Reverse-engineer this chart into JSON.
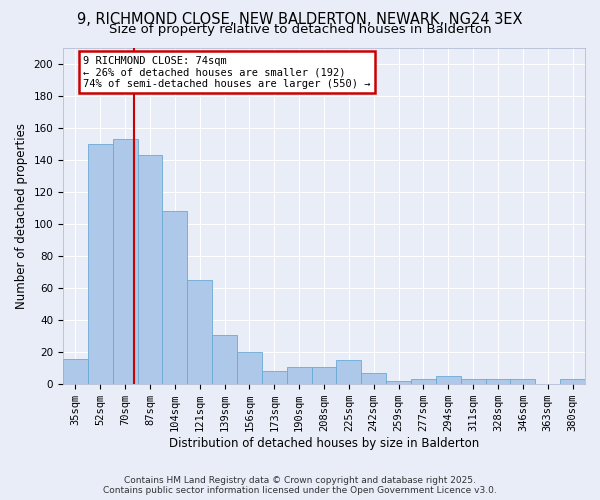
{
  "title": "9, RICHMOND CLOSE, NEW BALDERTON, NEWARK, NG24 3EX",
  "subtitle": "Size of property relative to detached houses in Balderton",
  "xlabel": "Distribution of detached houses by size in Balderton",
  "ylabel": "Number of detached properties",
  "bin_labels": [
    "35sqm",
    "52sqm",
    "70sqm",
    "87sqm",
    "104sqm",
    "121sqm",
    "139sqm",
    "156sqm",
    "173sqm",
    "190sqm",
    "208sqm",
    "225sqm",
    "242sqm",
    "259sqm",
    "277sqm",
    "294sqm",
    "311sqm",
    "328sqm",
    "346sqm",
    "363sqm",
    "380sqm"
  ],
  "bar_heights": [
    16,
    150,
    153,
    143,
    108,
    65,
    31,
    20,
    8,
    11,
    11,
    15,
    7,
    2,
    3,
    5,
    3,
    3,
    3,
    0,
    3
  ],
  "bar_color": "#adc8e8",
  "bar_edge_color": "#6aaad4",
  "background_color": "#e8edf8",
  "grid_color": "#ffffff",
  "property_label": "9 RICHMOND CLOSE: 74sqm",
  "annotation_line1": "← 26% of detached houses are smaller (192)",
  "annotation_line2": "74% of semi-detached houses are larger (550) →",
  "annotation_box_color": "#cc0000",
  "vline_color": "#cc0000",
  "vline_x_index": 2.35,
  "ylim": [
    0,
    210
  ],
  "yticks": [
    0,
    20,
    40,
    60,
    80,
    100,
    120,
    140,
    160,
    180,
    200
  ],
  "title_fontsize": 10.5,
  "subtitle_fontsize": 9.5,
  "xlabel_fontsize": 8.5,
  "ylabel_fontsize": 8.5,
  "tick_fontsize": 7.5,
  "annot_fontsize": 7.5,
  "footer": "Contains HM Land Registry data © Crown copyright and database right 2025.\nContains public sector information licensed under the Open Government Licence v3.0.",
  "footer_fontsize": 6.5
}
